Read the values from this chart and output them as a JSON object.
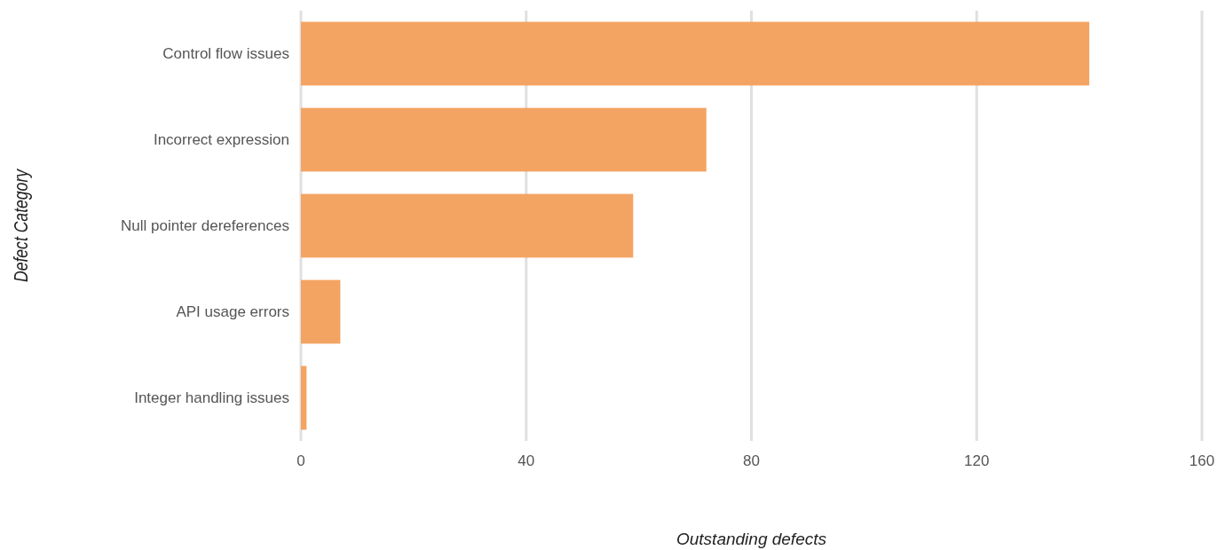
{
  "chart_data": {
    "type": "bar",
    "orientation": "horizontal",
    "categories": [
      "Control flow issues",
      "Incorrect expression",
      "Null pointer dereferences",
      "API usage errors",
      "Integer handling issues"
    ],
    "values": [
      140,
      72,
      59,
      7,
      1
    ],
    "color": "#f4a462",
    "xlim": [
      0,
      160
    ],
    "xticks": [
      0,
      40,
      80,
      120,
      160
    ],
    "grid": "x",
    "xlabel": "Outstanding defects",
    "ylabel": "Defect Category"
  }
}
